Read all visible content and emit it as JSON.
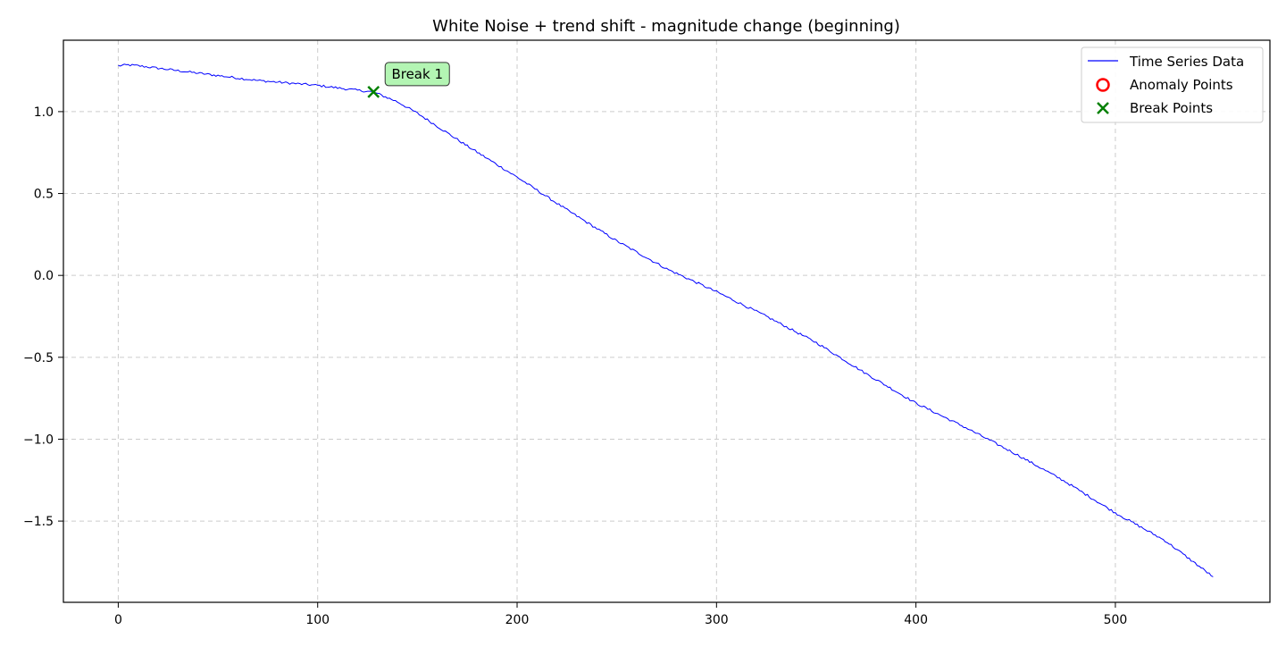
{
  "chart_data": {
    "type": "line",
    "title": "White Noise + trend shift - magnitude change (beginning)",
    "xlabel": "",
    "ylabel": "",
    "xlim": [
      -27.5,
      577.5
    ],
    "ylim": [
      -1.996,
      1.436
    ],
    "xticks": [
      0,
      100,
      200,
      300,
      400,
      500
    ],
    "yticks": [
      -1.5,
      -1.0,
      -0.5,
      0.0,
      0.5,
      1.0
    ],
    "xtick_labels": [
      "0",
      "100",
      "200",
      "300",
      "400",
      "500"
    ],
    "ytick_labels": [
      "−1.5",
      "−1.0",
      "−0.5",
      "0.0",
      "0.5",
      "1.0"
    ],
    "grid": true,
    "legend_position": "upper-right",
    "series": [
      {
        "name": "Time Series Data",
        "color": "#0000ff",
        "kind": "line",
        "x": [
          0,
          5,
          10,
          20,
          30,
          40,
          50,
          60,
          70,
          80,
          90,
          100,
          110,
          120,
          128,
          140,
          150,
          175,
          200,
          225,
          250,
          275,
          300,
          325,
          350,
          375,
          400,
          425,
          450,
          475,
          500,
          525,
          549
        ],
        "y": [
          1.28,
          1.285,
          1.28,
          1.265,
          1.25,
          1.235,
          1.22,
          1.205,
          1.19,
          1.18,
          1.17,
          1.16,
          1.145,
          1.13,
          1.12,
          1.06,
          0.99,
          0.79,
          0.6,
          0.4,
          0.21,
          0.04,
          -0.1,
          -0.25,
          -0.41,
          -0.6,
          -0.78,
          -0.93,
          -1.09,
          -1.26,
          -1.45,
          -1.62,
          -1.84
        ]
      },
      {
        "name": "Anomaly Points",
        "color": "#ff0000",
        "kind": "scatter",
        "marker": "circle",
        "x": [],
        "y": []
      },
      {
        "name": "Break Points",
        "color": "#008000",
        "kind": "scatter",
        "marker": "x",
        "x": [
          128
        ],
        "y": [
          1.12
        ]
      }
    ],
    "annotations": [
      {
        "text": "Break 1",
        "x": 128,
        "y": 1.12,
        "bg_color": "#b3f5b3"
      }
    ]
  }
}
